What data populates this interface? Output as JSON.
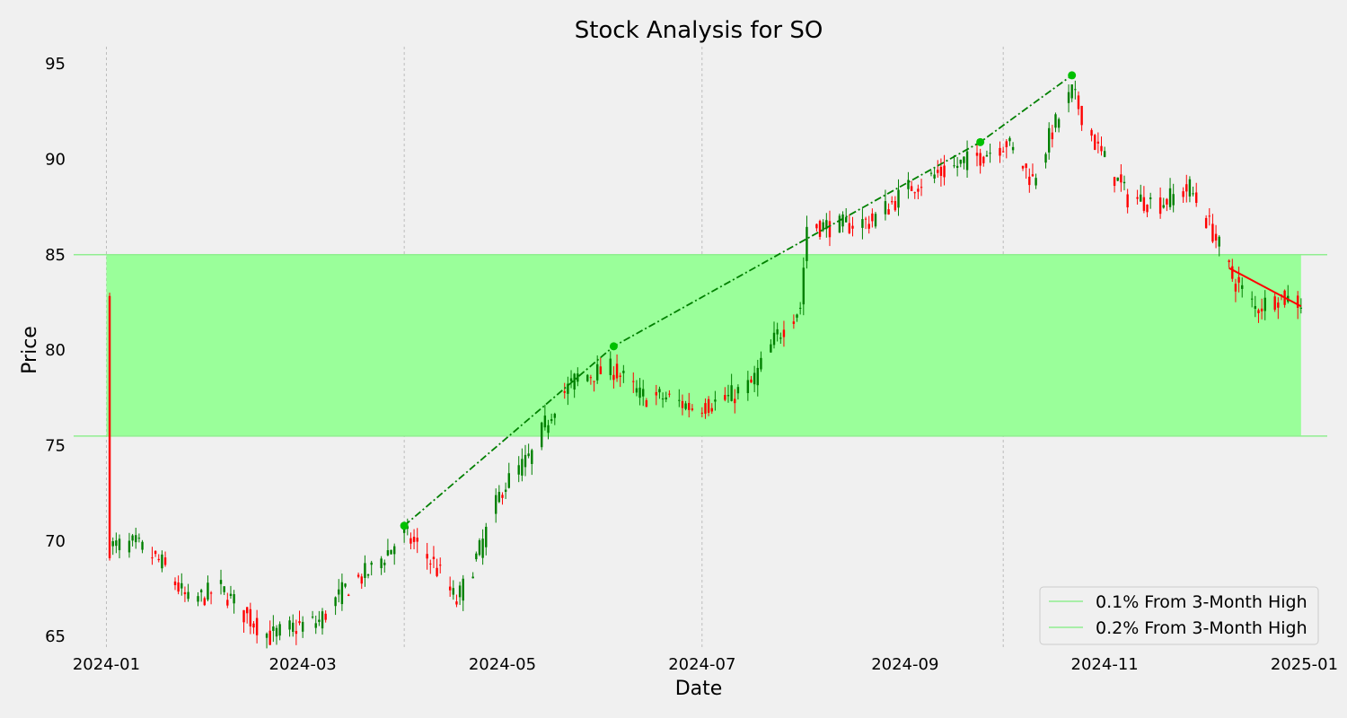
{
  "chart_data": {
    "type": "candlestick",
    "title": "Stock Analysis for SO",
    "xlabel": "Date",
    "ylabel": "Price",
    "xlim": [
      "2023-12-22",
      "2025-01-08"
    ],
    "ylim": [
      64.3,
      95.9
    ],
    "x_ticks": [
      "2024-01",
      "2024-03",
      "2024-05",
      "2024-07",
      "2024-09",
      "2024-11",
      "2025-01"
    ],
    "y_ticks": [
      65,
      70,
      75,
      80,
      85,
      90,
      95
    ],
    "vertical_gridlines": [
      "2024-01-01",
      "2024-04-01",
      "2024-07-01",
      "2024-10-01"
    ],
    "bands": {
      "from_date": "2024-01-01",
      "to_date": "2024-12-31",
      "low": 75.5,
      "high": 85.0,
      "fill_color": "#9aff9a",
      "line_color": "#90ee90"
    },
    "legend": {
      "placement": "lower-right",
      "entries": [
        "0.1% From 3-Month High",
        "0.2% From 3-Month High"
      ]
    },
    "up_color": "#008000",
    "down_color": "#ff0000",
    "trendline_up": {
      "color": "#008000",
      "marker_color": "#00c000",
      "points": [
        {
          "date": "2024-04-01",
          "value": 70.8
        },
        {
          "date": "2024-06-04",
          "value": 80.2
        },
        {
          "date": "2024-09-24",
          "value": 90.9
        },
        {
          "date": "2024-10-22",
          "value": 94.4
        }
      ]
    },
    "trendline_down": {
      "color": "#ff0000",
      "points": [
        {
          "date": "2024-12-09",
          "value": 84.3
        },
        {
          "date": "2024-12-31",
          "value": 82.3
        }
      ]
    },
    "anchors": [
      [
        "2024-01-02",
        69.7
      ],
      [
        "2024-01-10",
        69.8
      ],
      [
        "2024-01-18",
        68.8
      ],
      [
        "2024-01-26",
        66.8
      ],
      [
        "2024-02-05",
        67.5
      ],
      [
        "2024-02-12",
        66.2
      ],
      [
        "2024-02-20",
        65.0
      ],
      [
        "2024-02-28",
        65.5
      ],
      [
        "2024-03-06",
        65.8
      ],
      [
        "2024-03-14",
        67.5
      ],
      [
        "2024-03-22",
        68.5
      ],
      [
        "2024-04-01",
        70.4
      ],
      [
        "2024-04-10",
        68.8
      ],
      [
        "2024-04-17",
        66.8
      ],
      [
        "2024-04-24",
        69.5
      ],
      [
        "2024-05-01",
        72.8
      ],
      [
        "2024-05-10",
        74.5
      ],
      [
        "2024-05-17",
        77.2
      ],
      [
        "2024-05-24",
        78.6
      ],
      [
        "2024-06-04",
        79.0
      ],
      [
        "2024-06-12",
        77.6
      ],
      [
        "2024-06-20",
        77.5
      ],
      [
        "2024-06-28",
        77.0
      ],
      [
        "2024-07-08",
        77.4
      ],
      [
        "2024-07-16",
        78.2
      ],
      [
        "2024-07-24",
        80.8
      ],
      [
        "2024-07-31",
        82.3
      ],
      [
        "2024-08-02",
        86.5
      ],
      [
        "2024-08-12",
        86.5
      ],
      [
        "2024-08-22",
        86.8
      ],
      [
        "2024-09-03",
        88.6
      ],
      [
        "2024-09-12",
        89.3
      ],
      [
        "2024-09-24",
        90.2
      ],
      [
        "2024-10-02",
        90.9
      ],
      [
        "2024-10-10",
        88.9
      ],
      [
        "2024-10-16",
        91.5
      ],
      [
        "2024-10-22",
        93.5
      ],
      [
        "2024-10-30",
        90.5
      ],
      [
        "2024-11-08",
        88.0
      ],
      [
        "2024-11-18",
        87.7
      ],
      [
        "2024-11-27",
        88.5
      ],
      [
        "2024-12-04",
        86.2
      ],
      [
        "2024-12-10",
        83.8
      ],
      [
        "2024-12-17",
        82.2
      ],
      [
        "2024-12-24",
        82.8
      ],
      [
        "2024-12-31",
        82.5
      ]
    ]
  }
}
